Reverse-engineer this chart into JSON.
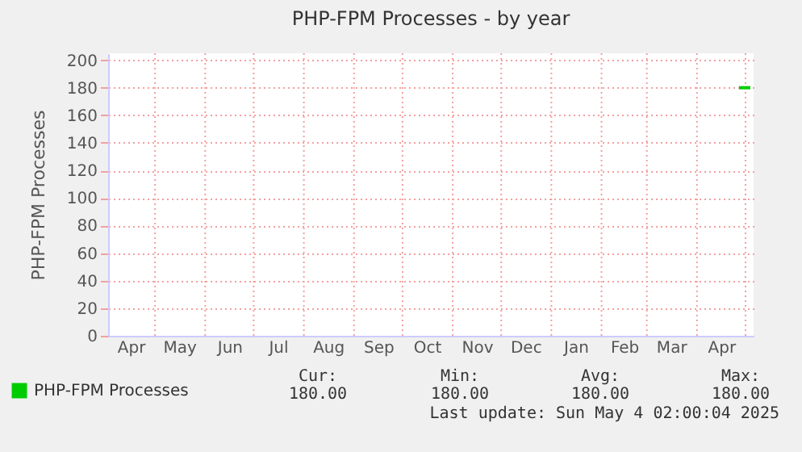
{
  "chart_data": {
    "type": "line",
    "title": "PHP-FPM Processes - by year",
    "ylabel": "PHP-FPM Processes",
    "series": [
      {
        "name": "PHP-FPM Processes",
        "color": "#00cc00",
        "x": [
          "2025-04-27",
          "2025-05-04"
        ],
        "values": [
          180,
          180
        ]
      }
    ],
    "xlim": [
      "2024-04-02",
      "2025-05-06"
    ],
    "xticks": [
      {
        "value": "2024-05-01",
        "label": null
      },
      {
        "value": "2024-06-01",
        "label": null
      },
      {
        "value": "2024-07-01",
        "label": null
      },
      {
        "value": "2024-08-01",
        "label": null
      },
      {
        "value": "2024-09-01",
        "label": null
      },
      {
        "value": "2024-10-01",
        "label": null
      },
      {
        "value": "2024-11-01",
        "label": null
      },
      {
        "value": "2024-12-01",
        "label": null
      },
      {
        "value": "2025-01-01",
        "label": null
      },
      {
        "value": "2025-02-01",
        "label": null
      },
      {
        "value": "2025-03-01",
        "label": null
      },
      {
        "value": "2025-04-01",
        "label": null
      },
      {
        "value": "2025-05-01",
        "label": null
      },
      {
        "value": "2024-04-16",
        "label": "Apr"
      },
      {
        "value": "2024-05-16",
        "label": "May"
      },
      {
        "value": "2024-06-16",
        "label": "Jun"
      },
      {
        "value": "2024-07-16",
        "label": "Jul"
      },
      {
        "value": "2024-08-16",
        "label": "Aug"
      },
      {
        "value": "2024-09-16",
        "label": "Sep"
      },
      {
        "value": "2024-10-16",
        "label": "Oct"
      },
      {
        "value": "2024-11-16",
        "label": "Nov"
      },
      {
        "value": "2024-12-16",
        "label": "Dec"
      },
      {
        "value": "2025-01-16",
        "label": "Jan"
      },
      {
        "value": "2025-02-15",
        "label": "Feb"
      },
      {
        "value": "2025-03-16",
        "label": "Mar"
      },
      {
        "value": "2025-04-16",
        "label": "Apr"
      }
    ],
    "ylim": [
      0,
      205
    ],
    "yticks": [
      0,
      20,
      40,
      60,
      80,
      100,
      120,
      140,
      160,
      180,
      200
    ],
    "grid": true,
    "legend": "bottom left",
    "line_style": "solid",
    "marker": "none",
    "annotations": [
      "Cur:",
      "Min:",
      "Avg:",
      "Max:",
      "180.00",
      "180.00",
      "180.00",
      "180.00",
      "Last update: Sun May  4 02:00:04 2025"
    ]
  }
}
